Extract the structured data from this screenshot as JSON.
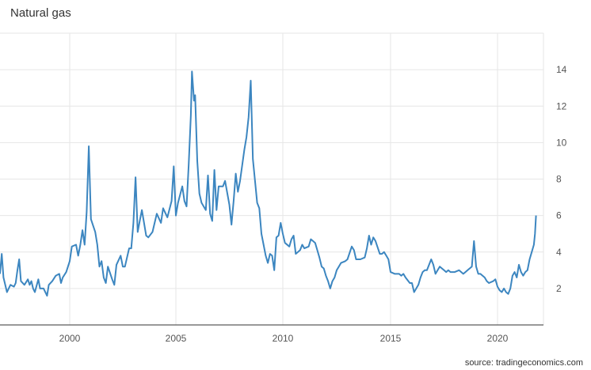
{
  "chart_data": {
    "type": "line",
    "title": "Natural gas",
    "source": "source: tradingeconomics.com",
    "xlabel": "",
    "ylabel": "",
    "x_ticks": [
      "2000",
      "2005",
      "2010",
      "2015",
      "2020"
    ],
    "y_ticks": [
      "2",
      "4",
      "6",
      "8",
      "10",
      "12",
      "14"
    ],
    "xlim": [
      1996.0,
      2022.0
    ],
    "ylim": [
      0.0,
      16.0
    ],
    "grid": true,
    "legend": "none",
    "colors": {
      "line": "#3c86c0",
      "grid": "#e6e6e6",
      "axis": "#333333"
    },
    "series": [
      {
        "values": [
          [
            1996.0,
            2.8
          ],
          [
            1996.1,
            3.9
          ],
          [
            1996.2,
            2.6
          ],
          [
            1996.4,
            1.8
          ],
          [
            1996.6,
            2.2
          ],
          [
            1996.8,
            2.1
          ],
          [
            1996.9,
            2.3
          ],
          [
            1997.0,
            3.0
          ],
          [
            1997.1,
            3.6
          ],
          [
            1997.2,
            2.4
          ],
          [
            1997.4,
            2.2
          ],
          [
            1997.6,
            2.5
          ],
          [
            1997.7,
            2.2
          ],
          [
            1997.8,
            2.4
          ],
          [
            1997.9,
            2.0
          ],
          [
            1998.0,
            1.8
          ],
          [
            1998.2,
            2.5
          ],
          [
            1998.3,
            2.0
          ],
          [
            1998.5,
            2.0
          ],
          [
            1998.7,
            1.6
          ],
          [
            1998.8,
            2.2
          ],
          [
            1999.0,
            2.4
          ],
          [
            1999.2,
            2.7
          ],
          [
            1999.4,
            2.8
          ],
          [
            1999.5,
            2.3
          ],
          [
            1999.6,
            2.6
          ],
          [
            1999.8,
            2.9
          ],
          [
            1999.9,
            3.2
          ],
          [
            2000.0,
            3.5
          ],
          [
            2000.1,
            4.3
          ],
          [
            2000.3,
            4.4
          ],
          [
            2000.4,
            3.8
          ],
          [
            2000.5,
            4.4
          ],
          [
            2000.6,
            5.2
          ],
          [
            2000.7,
            4.4
          ],
          [
            2000.8,
            6.2
          ],
          [
            2000.9,
            9.8
          ],
          [
            2001.0,
            5.8
          ],
          [
            2001.2,
            5.1
          ],
          [
            2001.3,
            4.4
          ],
          [
            2001.4,
            3.2
          ],
          [
            2001.5,
            3.5
          ],
          [
            2001.6,
            2.6
          ],
          [
            2001.7,
            2.3
          ],
          [
            2001.8,
            3.2
          ],
          [
            2002.0,
            2.5
          ],
          [
            2002.1,
            2.2
          ],
          [
            2002.2,
            3.3
          ],
          [
            2002.4,
            3.8
          ],
          [
            2002.5,
            3.2
          ],
          [
            2002.6,
            3.2
          ],
          [
            2002.8,
            4.2
          ],
          [
            2002.9,
            4.2
          ],
          [
            2003.0,
            5.6
          ],
          [
            2003.1,
            8.1
          ],
          [
            2003.2,
            5.1
          ],
          [
            2003.3,
            5.7
          ],
          [
            2003.4,
            6.3
          ],
          [
            2003.6,
            4.9
          ],
          [
            2003.7,
            4.8
          ],
          [
            2003.9,
            5.1
          ],
          [
            2004.0,
            5.6
          ],
          [
            2004.1,
            6.1
          ],
          [
            2004.3,
            5.6
          ],
          [
            2004.4,
            6.4
          ],
          [
            2004.6,
            5.9
          ],
          [
            2004.8,
            6.8
          ],
          [
            2004.9,
            8.7
          ],
          [
            2005.0,
            6.0
          ],
          [
            2005.1,
            6.7
          ],
          [
            2005.3,
            7.6
          ],
          [
            2005.4,
            6.8
          ],
          [
            2005.5,
            6.5
          ],
          [
            2005.6,
            8.8
          ],
          [
            2005.7,
            11.5
          ],
          [
            2005.75,
            13.9
          ],
          [
            2005.85,
            12.3
          ],
          [
            2005.9,
            12.6
          ],
          [
            2006.0,
            9.0
          ],
          [
            2006.1,
            7.2
          ],
          [
            2006.2,
            6.7
          ],
          [
            2006.4,
            6.3
          ],
          [
            2006.5,
            8.2
          ],
          [
            2006.6,
            6.1
          ],
          [
            2006.7,
            5.7
          ],
          [
            2006.8,
            8.5
          ],
          [
            2006.9,
            6.3
          ],
          [
            2007.0,
            7.6
          ],
          [
            2007.2,
            7.6
          ],
          [
            2007.3,
            7.9
          ],
          [
            2007.5,
            6.6
          ],
          [
            2007.6,
            5.5
          ],
          [
            2007.7,
            6.8
          ],
          [
            2007.8,
            8.3
          ],
          [
            2007.9,
            7.3
          ],
          [
            2008.0,
            7.9
          ],
          [
            2008.2,
            9.6
          ],
          [
            2008.3,
            10.3
          ],
          [
            2008.4,
            11.4
          ],
          [
            2008.5,
            13.4
          ],
          [
            2008.6,
            9.1
          ],
          [
            2008.7,
            7.9
          ],
          [
            2008.8,
            6.7
          ],
          [
            2008.9,
            6.4
          ],
          [
            2009.0,
            5.0
          ],
          [
            2009.1,
            4.4
          ],
          [
            2009.2,
            3.8
          ],
          [
            2009.3,
            3.4
          ],
          [
            2009.4,
            3.9
          ],
          [
            2009.5,
            3.8
          ],
          [
            2009.6,
            3.0
          ],
          [
            2009.7,
            4.8
          ],
          [
            2009.8,
            4.9
          ],
          [
            2009.9,
            5.6
          ],
          [
            2010.0,
            5.0
          ],
          [
            2010.1,
            4.5
          ],
          [
            2010.3,
            4.3
          ],
          [
            2010.4,
            4.7
          ],
          [
            2010.5,
            4.9
          ],
          [
            2010.6,
            3.9
          ],
          [
            2010.8,
            4.1
          ],
          [
            2010.9,
            4.4
          ],
          [
            2011.0,
            4.2
          ],
          [
            2011.2,
            4.3
          ],
          [
            2011.3,
            4.7
          ],
          [
            2011.4,
            4.6
          ],
          [
            2011.5,
            4.5
          ],
          [
            2011.6,
            4.1
          ],
          [
            2011.7,
            3.7
          ],
          [
            2011.8,
            3.2
          ],
          [
            2011.9,
            3.1
          ],
          [
            2012.0,
            2.7
          ],
          [
            2012.1,
            2.4
          ],
          [
            2012.2,
            2.0
          ],
          [
            2012.3,
            2.4
          ],
          [
            2012.4,
            2.6
          ],
          [
            2012.5,
            3.0
          ],
          [
            2012.6,
            3.2
          ],
          [
            2012.7,
            3.4
          ],
          [
            2012.9,
            3.5
          ],
          [
            2013.0,
            3.6
          ],
          [
            2013.2,
            4.3
          ],
          [
            2013.3,
            4.1
          ],
          [
            2013.4,
            3.6
          ],
          [
            2013.6,
            3.6
          ],
          [
            2013.8,
            3.7
          ],
          [
            2013.9,
            4.2
          ],
          [
            2014.0,
            4.9
          ],
          [
            2014.1,
            4.4
          ],
          [
            2014.2,
            4.8
          ],
          [
            2014.3,
            4.6
          ],
          [
            2014.5,
            3.9
          ],
          [
            2014.6,
            3.9
          ],
          [
            2014.7,
            4.0
          ],
          [
            2014.8,
            3.8
          ],
          [
            2014.9,
            3.6
          ],
          [
            2015.0,
            2.9
          ],
          [
            2015.2,
            2.8
          ],
          [
            2015.4,
            2.8
          ],
          [
            2015.5,
            2.7
          ],
          [
            2015.6,
            2.8
          ],
          [
            2015.7,
            2.6
          ],
          [
            2015.9,
            2.3
          ],
          [
            2016.0,
            2.3
          ],
          [
            2016.1,
            1.8
          ],
          [
            2016.2,
            2.0
          ],
          [
            2016.3,
            2.2
          ],
          [
            2016.4,
            2.6
          ],
          [
            2016.5,
            2.9
          ],
          [
            2016.6,
            3.0
          ],
          [
            2016.7,
            3.0
          ],
          [
            2016.9,
            3.6
          ],
          [
            2017.0,
            3.3
          ],
          [
            2017.1,
            2.8
          ],
          [
            2017.2,
            3.0
          ],
          [
            2017.3,
            3.2
          ],
          [
            2017.5,
            3.0
          ],
          [
            2017.6,
            2.9
          ],
          [
            2017.7,
            3.0
          ],
          [
            2017.8,
            2.9
          ],
          [
            2018.0,
            2.9
          ],
          [
            2018.2,
            3.0
          ],
          [
            2018.4,
            2.8
          ],
          [
            2018.5,
            2.9
          ],
          [
            2018.6,
            3.0
          ],
          [
            2018.8,
            3.2
          ],
          [
            2018.9,
            4.6
          ],
          [
            2019.0,
            3.2
          ],
          [
            2019.1,
            2.8
          ],
          [
            2019.2,
            2.8
          ],
          [
            2019.4,
            2.6
          ],
          [
            2019.5,
            2.4
          ],
          [
            2019.6,
            2.3
          ],
          [
            2019.8,
            2.4
          ],
          [
            2019.9,
            2.5
          ],
          [
            2020.0,
            2.1
          ],
          [
            2020.1,
            1.9
          ],
          [
            2020.2,
            1.8
          ],
          [
            2020.3,
            2.0
          ],
          [
            2020.4,
            1.8
          ],
          [
            2020.5,
            1.7
          ],
          [
            2020.6,
            2.0
          ],
          [
            2020.7,
            2.7
          ],
          [
            2020.8,
            2.9
          ],
          [
            2020.9,
            2.6
          ],
          [
            2021.0,
            3.3
          ],
          [
            2021.1,
            2.9
          ],
          [
            2021.2,
            2.7
          ],
          [
            2021.3,
            2.9
          ],
          [
            2021.4,
            3.0
          ],
          [
            2021.5,
            3.6
          ],
          [
            2021.6,
            4.0
          ],
          [
            2021.7,
            4.4
          ],
          [
            2021.75,
            5.0
          ],
          [
            2021.8,
            6.0
          ]
        ]
      }
    ]
  }
}
